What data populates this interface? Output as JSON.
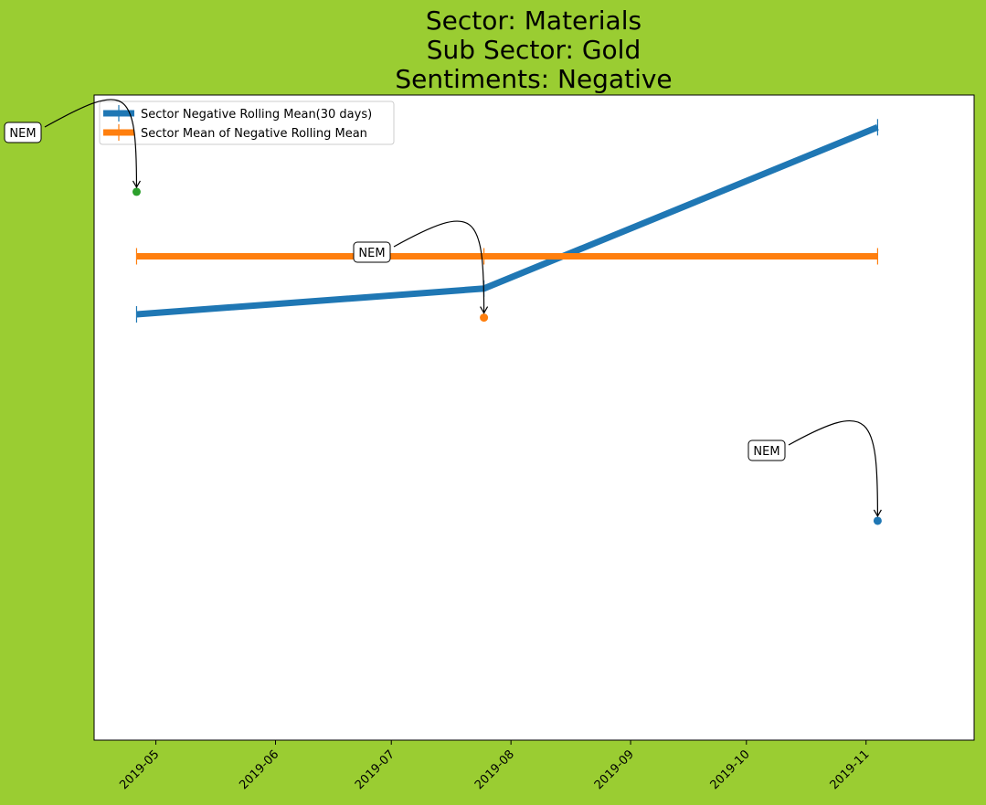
{
  "colors": {
    "background": "#9acd32",
    "plot_area": "#ffffff",
    "series_rolling": "#1f77b4",
    "series_mean": "#ff7f0e",
    "marker_green": "#2ca02c"
  },
  "chart_data": {
    "type": "line",
    "title": [
      "Sector:  Materials",
      "Sub Sector:  Gold",
      "Sentiments:  Negative"
    ],
    "xlabel": "",
    "ylabel": "",
    "x_ticks": [
      "2019-05",
      "2019-06",
      "2019-07",
      "2019-08",
      "2019-09",
      "2019-10",
      "2019-11"
    ],
    "xlim": [
      "2019-04-15",
      "2019-11-29"
    ],
    "ylim": [
      0,
      1
    ],
    "y_ticks_shown": false,
    "grid": false,
    "legend_position": "upper-left",
    "series": [
      {
        "name": "Sector Negative Rolling Mean(30 days)",
        "color": "#1f77b4",
        "points": [
          {
            "x": "2019-04-26",
            "y": 0.66
          },
          {
            "x": "2019-07-25",
            "y": 0.7
          },
          {
            "x": "2019-11-04",
            "y": 0.95
          }
        ]
      },
      {
        "name": "Sector Mean of Negative Rolling Mean",
        "color": "#ff7f0e",
        "points": [
          {
            "x": "2019-04-26",
            "y": 0.75
          },
          {
            "x": "2019-07-25",
            "y": 0.75
          },
          {
            "x": "2019-11-04",
            "y": 0.75
          }
        ]
      }
    ],
    "markers": [
      {
        "x": "2019-04-26",
        "y": 0.85,
        "color": "#2ca02c"
      },
      {
        "x": "2019-07-25",
        "y": 0.655,
        "color": "#ff7f0e"
      },
      {
        "x": "2019-11-04",
        "y": 0.34,
        "color": "#1f77b4"
      }
    ],
    "annotations": [
      {
        "text": "NEM",
        "target_index": 0
      },
      {
        "text": "NEM",
        "target_index": 1
      },
      {
        "text": "NEM",
        "target_index": 2
      }
    ]
  }
}
